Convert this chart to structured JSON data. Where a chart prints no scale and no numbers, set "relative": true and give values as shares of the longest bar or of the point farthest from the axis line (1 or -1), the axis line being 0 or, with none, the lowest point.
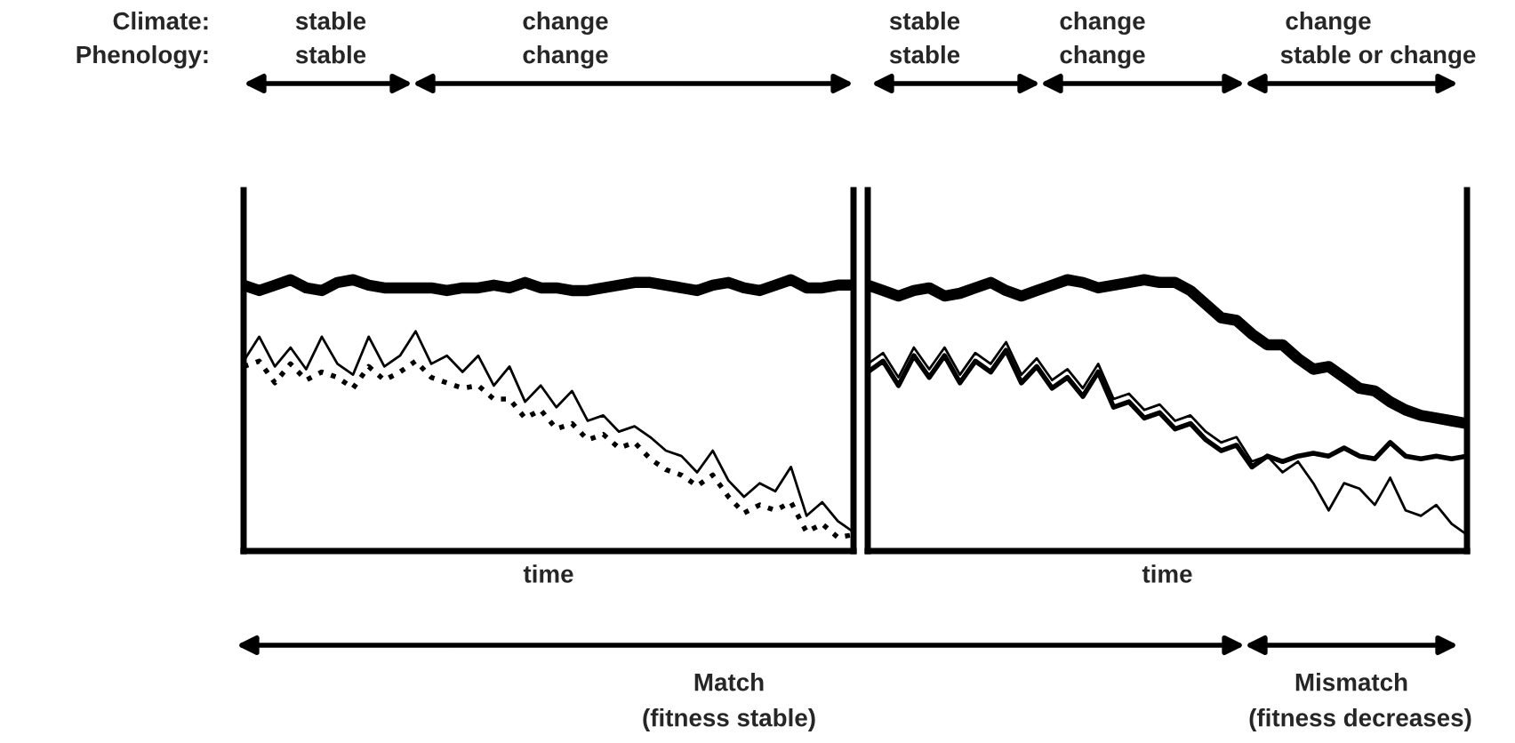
{
  "chart_data": [
    {
      "type": "line",
      "relative": true,
      "xlabel": "time",
      "categories": [
        null,
        null,
        null,
        null,
        null,
        null,
        null,
        null,
        null,
        null,
        null,
        null,
        null,
        null,
        null,
        null,
        null,
        null,
        null,
        null,
        null,
        null,
        null,
        null,
        null,
        null,
        null,
        null,
        null,
        null,
        null,
        null,
        null,
        null,
        null,
        null,
        null,
        null,
        null,
        null
      ],
      "series": [
        {
          "color": "#000000",
          "line_style": "solid",
          "values": [
            0.98,
            0.96,
            0.98,
            1.0,
            0.97,
            0.96,
            0.99,
            1.0,
            0.98,
            0.97,
            0.97,
            0.97,
            0.97,
            0.96,
            0.97,
            0.97,
            0.98,
            0.97,
            0.99,
            0.97,
            0.97,
            0.96,
            0.96,
            0.97,
            0.98,
            0.99,
            0.99,
            0.98,
            0.97,
            0.96,
            0.98,
            0.99,
            0.97,
            0.96,
            0.98,
            1.0,
            0.97,
            0.97,
            0.98,
            0.98
          ]
        },
        {
          "color": "#000000",
          "line_style": "solid",
          "values": [
            0.7,
            0.79,
            0.68,
            0.75,
            0.67,
            0.79,
            0.69,
            0.65,
            0.79,
            0.68,
            0.72,
            0.81,
            0.69,
            0.72,
            0.66,
            0.72,
            0.61,
            0.68,
            0.55,
            0.61,
            0.53,
            0.59,
            0.48,
            0.5,
            0.44,
            0.46,
            0.42,
            0.37,
            0.35,
            0.29,
            0.37,
            0.26,
            0.2,
            0.25,
            0.22,
            0.31,
            0.13,
            0.18,
            0.11,
            0.07
          ]
        },
        {
          "color": "#000000",
          "line_style": "dotted",
          "values": [
            0.68,
            0.7,
            0.62,
            0.69,
            0.63,
            0.66,
            0.64,
            0.6,
            0.68,
            0.63,
            0.66,
            0.7,
            0.64,
            0.62,
            0.6,
            0.61,
            0.56,
            0.56,
            0.49,
            0.52,
            0.45,
            0.47,
            0.41,
            0.43,
            0.38,
            0.4,
            0.34,
            0.3,
            0.28,
            0.24,
            0.28,
            0.2,
            0.14,
            0.17,
            0.15,
            0.18,
            0.07,
            0.1,
            0.05,
            0.06
          ]
        }
      ],
      "annotations": [
        "Climate:",
        "Phenology:",
        "stable",
        "change",
        "stable",
        "change",
        "Match",
        "(fitness stable)"
      ]
    },
    {
      "type": "line",
      "relative": true,
      "xlabel": "time",
      "categories": [
        null,
        null,
        null,
        null,
        null,
        null,
        null,
        null,
        null,
        null,
        null,
        null,
        null,
        null,
        null,
        null,
        null,
        null,
        null,
        null,
        null,
        null,
        null,
        null,
        null,
        null,
        null,
        null,
        null,
        null,
        null,
        null,
        null,
        null,
        null,
        null,
        null,
        null,
        null,
        null
      ],
      "series": [
        {
          "color": "#000000",
          "line_style": "solid",
          "values": [
            0.98,
            0.96,
            0.94,
            0.96,
            0.97,
            0.94,
            0.95,
            0.97,
            0.99,
            0.96,
            0.94,
            0.96,
            0.98,
            1.0,
            0.99,
            0.97,
            0.98,
            0.99,
            1.0,
            0.99,
            0.99,
            0.96,
            0.91,
            0.86,
            0.85,
            0.8,
            0.76,
            0.76,
            0.71,
            0.67,
            0.68,
            0.64,
            0.6,
            0.59,
            0.55,
            0.52,
            0.5,
            0.49,
            0.48,
            0.47
          ]
        },
        {
          "color": "#000000",
          "line_style": "solid",
          "values": [
            0.69,
            0.73,
            0.64,
            0.75,
            0.67,
            0.75,
            0.65,
            0.73,
            0.69,
            0.77,
            0.65,
            0.71,
            0.63,
            0.67,
            0.6,
            0.69,
            0.56,
            0.58,
            0.52,
            0.54,
            0.48,
            0.5,
            0.44,
            0.4,
            0.42,
            0.33,
            0.35,
            0.29,
            0.33,
            0.25,
            0.15,
            0.25,
            0.23,
            0.17,
            0.27,
            0.15,
            0.13,
            0.17,
            0.1,
            0.06
          ]
        },
        {
          "color": "#000000",
          "line_style": "solid",
          "values": [
            0.66,
            0.7,
            0.61,
            0.72,
            0.64,
            0.72,
            0.62,
            0.7,
            0.66,
            0.74,
            0.62,
            0.68,
            0.6,
            0.64,
            0.57,
            0.66,
            0.53,
            0.55,
            0.49,
            0.51,
            0.45,
            0.47,
            0.41,
            0.37,
            0.39,
            0.31,
            0.35,
            0.33,
            0.35,
            0.36,
            0.35,
            0.38,
            0.35,
            0.34,
            0.4,
            0.35,
            0.34,
            0.35,
            0.34,
            0.35
          ]
        }
      ],
      "annotations": [
        "stable",
        "change",
        "change",
        "stable",
        "change",
        "stable or change",
        "Mismatch",
        "(fitness decreases)"
      ]
    }
  ]
}
